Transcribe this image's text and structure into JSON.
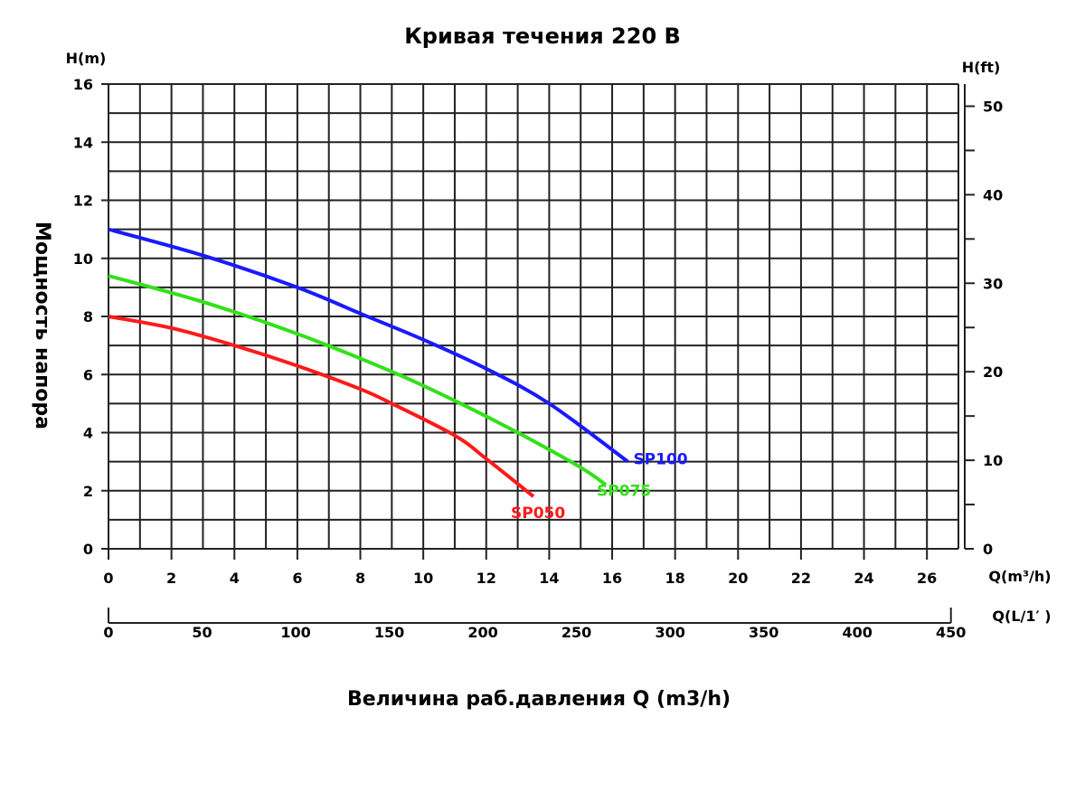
{
  "chart_data": {
    "type": "line",
    "title": "Кривая течения 220 В",
    "xlabel": "Величина раб.давления Q (m3/h)",
    "ylabel": "Мощность напора",
    "y_left_unit": "H(m)",
    "y_right_unit": "H(ft)",
    "x_unit": "Q(m³/h)",
    "x2_unit": "Q(L/1′ )",
    "xlim": [
      0,
      27
    ],
    "ylim": [
      0,
      16
    ],
    "y2lim": [
      0,
      52.5
    ],
    "x2lim": [
      0,
      454
    ],
    "x_ticks": [
      0,
      2,
      4,
      6,
      8,
      10,
      12,
      14,
      16,
      18,
      20,
      22,
      24,
      26
    ],
    "y_ticks": [
      0,
      2,
      4,
      6,
      8,
      10,
      12,
      14,
      16
    ],
    "y2_ticks": [
      0,
      10,
      20,
      30,
      40,
      50
    ],
    "x2_ticks": [
      0,
      50,
      100,
      150,
      200,
      250,
      300,
      350,
      400,
      450
    ],
    "grid": true,
    "series": [
      {
        "name": "SP100",
        "color": "#1a1aff",
        "x": [
          0,
          3,
          6,
          8,
          10,
          12,
          14,
          16.5
        ],
        "y": [
          11,
          10.1,
          9,
          8.1,
          7.2,
          6.2,
          5,
          3
        ]
      },
      {
        "name": "SP075",
        "color": "#33e01a",
        "x": [
          0,
          3,
          6,
          9,
          11,
          13,
          15,
          15.8
        ],
        "y": [
          9.4,
          8.5,
          7.4,
          6.1,
          5.1,
          4,
          2.8,
          2.2
        ]
      },
      {
        "name": "SP050",
        "color": "#ff1a1a",
        "x": [
          0,
          2,
          4,
          6,
          8,
          9,
          11,
          12,
          13.5
        ],
        "y": [
          8,
          7.6,
          7,
          6.3,
          5.5,
          5,
          3.9,
          3.1,
          1.8
        ]
      }
    ]
  }
}
